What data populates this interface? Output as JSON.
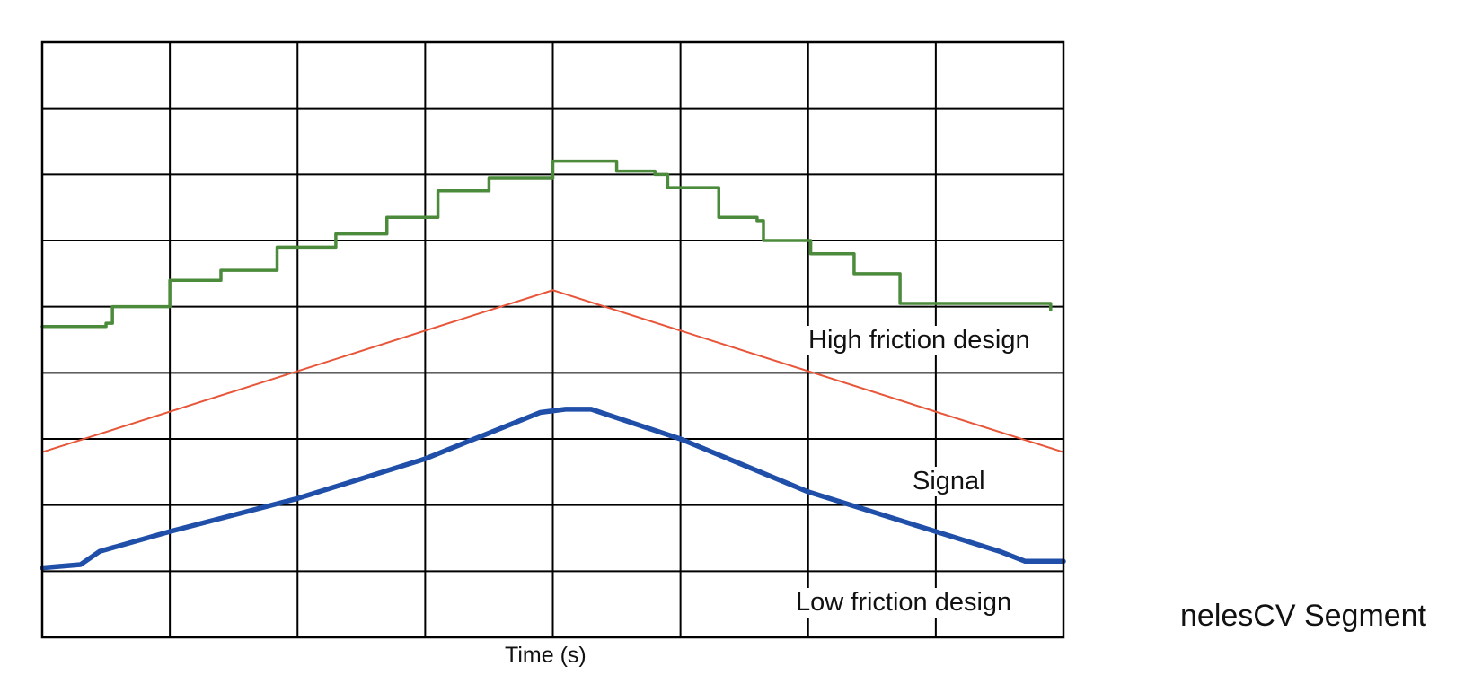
{
  "chart_data": {
    "type": "line",
    "title": "",
    "xlabel": "Time (s)",
    "ylabel": "",
    "grid": true,
    "grid_cols": 8,
    "grid_rows": 9,
    "xlim": [
      0,
      8
    ],
    "ylim": [
      0,
      9
    ],
    "series": [
      {
        "name": "High friction design",
        "color": "#4b8b3b",
        "step": true,
        "points": [
          [
            0,
            4.7
          ],
          [
            0.5,
            4.75
          ],
          [
            0.55,
            5.0
          ],
          [
            0.98,
            5.0
          ],
          [
            1.0,
            5.4
          ],
          [
            1.38,
            5.4
          ],
          [
            1.4,
            5.55
          ],
          [
            1.82,
            5.55
          ],
          [
            1.84,
            5.9
          ],
          [
            2.26,
            5.9
          ],
          [
            2.3,
            6.1
          ],
          [
            2.66,
            6.1
          ],
          [
            2.7,
            6.35
          ],
          [
            3.07,
            6.35
          ],
          [
            3.1,
            6.75
          ],
          [
            3.48,
            6.75
          ],
          [
            3.5,
            6.95
          ],
          [
            3.98,
            6.95
          ],
          [
            4.0,
            7.2
          ],
          [
            4.15,
            7.2
          ],
          [
            4.5,
            7.05
          ],
          [
            4.8,
            7.0
          ],
          [
            4.9,
            6.8
          ],
          [
            5.25,
            6.8
          ],
          [
            5.3,
            6.35
          ],
          [
            5.6,
            6.3
          ],
          [
            5.65,
            6.0
          ],
          [
            5.98,
            6.0
          ],
          [
            6.02,
            5.8
          ],
          [
            6.32,
            5.8
          ],
          [
            6.36,
            5.5
          ],
          [
            6.68,
            5.5
          ],
          [
            6.72,
            5.05
          ],
          [
            7.18,
            5.05
          ],
          [
            7.85,
            5.05
          ],
          [
            7.9,
            4.95
          ]
        ]
      },
      {
        "name": "Signal",
        "color": "#e8563a",
        "step": false,
        "points": [
          [
            0,
            2.8
          ],
          [
            4.0,
            5.25
          ],
          [
            8.0,
            2.8
          ]
        ]
      },
      {
        "name": "Low friction design",
        "color": "#1f4fa8",
        "step": false,
        "points": [
          [
            0,
            1.05
          ],
          [
            0.3,
            1.1
          ],
          [
            0.45,
            1.3
          ],
          [
            1.0,
            1.6
          ],
          [
            2.0,
            2.1
          ],
          [
            3.0,
            2.7
          ],
          [
            3.9,
            3.4
          ],
          [
            4.1,
            3.45
          ],
          [
            4.3,
            3.45
          ],
          [
            5.0,
            3.0
          ],
          [
            6.0,
            2.2
          ],
          [
            7.0,
            1.6
          ],
          [
            7.5,
            1.3
          ],
          [
            7.7,
            1.15
          ],
          [
            8.0,
            1.15
          ]
        ]
      }
    ]
  },
  "side_caption": "nelesCV Segment"
}
